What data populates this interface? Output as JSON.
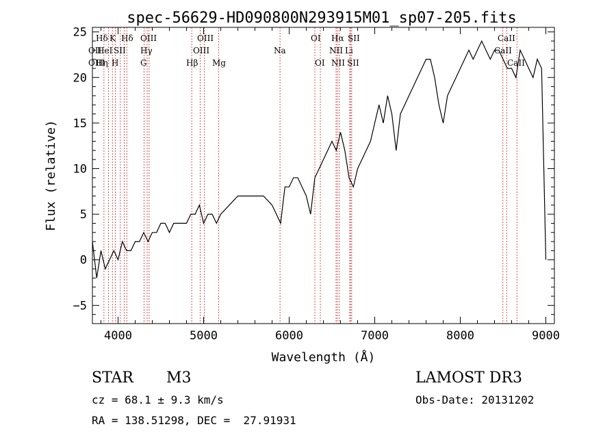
{
  "chart_data": {
    "type": "line",
    "title": "spec-56629-HD090800N293915M01_sp07-205.fits",
    "xlabel": "Wavelength (Å)",
    "ylabel": "Flux (relative)",
    "xlim": [
      3700,
      9100
    ],
    "ylim": [
      -7,
      25.5
    ],
    "xticks": [
      4000,
      5000,
      6000,
      7000,
      8000,
      9000
    ],
    "yticks": [
      -5,
      0,
      5,
      10,
      15,
      20,
      25
    ],
    "grid": false,
    "series": [
      {
        "x": [
          3700,
          3750,
          3800,
          3850,
          3900,
          3950,
          4000,
          4050,
          4100,
          4150,
          4200,
          4250,
          4300,
          4350,
          4400,
          4450,
          4500,
          4550,
          4600,
          4650,
          4700,
          4750,
          4800,
          4850,
          4900,
          4950,
          5000,
          5050,
          5100,
          5150,
          5200,
          5300,
          5400,
          5500,
          5600,
          5700,
          5800,
          5850,
          5900,
          5950,
          6000,
          6050,
          6100,
          6150,
          6200,
          6250,
          6300,
          6350,
          6400,
          6450,
          6500,
          6550,
          6600,
          6650,
          6700,
          6750,
          6800,
          6850,
          6900,
          6950,
          7000,
          7050,
          7100,
          7150,
          7200,
          7250,
          7300,
          7350,
          7400,
          7450,
          7500,
          7550,
          7600,
          7650,
          7700,
          7750,
          7800,
          7850,
          7900,
          7950,
          8000,
          8050,
          8100,
          8150,
          8200,
          8250,
          8300,
          8350,
          8400,
          8450,
          8500,
          8550,
          8600,
          8650,
          8700,
          8750,
          8800,
          8850,
          8900,
          8950,
          9000
        ],
        "y": [
          2,
          -2,
          1,
          -1,
          0,
          1,
          0,
          2,
          1,
          1,
          2,
          2,
          3,
          2,
          3,
          3,
          4,
          4,
          3,
          4,
          4,
          4,
          4,
          5,
          5,
          6,
          4,
          5,
          5,
          4,
          5,
          6,
          7,
          7,
          7,
          7,
          6,
          5,
          4,
          8,
          8,
          9,
          9,
          8,
          7,
          5,
          9,
          10,
          11,
          12,
          13,
          12,
          14,
          12,
          9,
          8,
          10,
          11,
          12,
          13,
          15,
          17,
          15,
          18,
          16,
          12,
          16,
          17,
          18,
          19,
          20,
          21,
          22,
          22,
          20,
          17,
          15,
          18,
          19,
          20,
          21,
          22,
          23,
          22,
          23,
          24,
          23,
          22,
          23,
          23,
          22,
          21,
          21,
          20,
          23,
          22,
          21,
          20,
          22,
          21,
          0
        ]
      }
    ],
    "line_markers": [
      {
        "x": 3835,
        "labels": [
          "Hη"
        ]
      },
      {
        "x": 3889,
        "labels": [
          "Hζ"
        ]
      },
      {
        "x": 3934,
        "labels": [
          "K"
        ]
      },
      {
        "x": 3969,
        "labels": [
          "H"
        ]
      },
      {
        "x": 4026,
        "labels": [
          "HeI"
        ]
      },
      {
        "x": 4072,
        "labels": [
          "SII"
        ]
      },
      {
        "x": 4102,
        "labels": [
          "Hδ"
        ]
      },
      {
        "x": 4304,
        "labels": [
          "G"
        ]
      },
      {
        "x": 4340,
        "labels": [
          "Hγ"
        ]
      },
      {
        "x": 4363,
        "labels": [
          "OIII"
        ]
      },
      {
        "x": 4861,
        "labels": [
          "Hβ"
        ]
      },
      {
        "x": 4959,
        "labels": [
          "OIII"
        ]
      },
      {
        "x": 5007,
        "labels": [
          "OIII"
        ]
      },
      {
        "x": 5175,
        "labels": [
          "Mg"
        ]
      },
      {
        "x": 5893,
        "labels": [
          "Na"
        ]
      },
      {
        "x": 6300,
        "labels": [
          "OI"
        ]
      },
      {
        "x": 6364,
        "labels": [
          "OI"
        ]
      },
      {
        "x": 6548,
        "labels": [
          "NII"
        ]
      },
      {
        "x": 6563,
        "labels": [
          "Hα"
        ]
      },
      {
        "x": 6584,
        "labels": [
          "NII"
        ]
      },
      {
        "x": 6708,
        "labels": [
          "Li"
        ]
      },
      {
        "x": 6717,
        "labels": [
          "SII"
        ]
      },
      {
        "x": 6731,
        "labels": [
          "SII"
        ]
      },
      {
        "x": 8498,
        "labels": [
          "CaII"
        ]
      },
      {
        "x": 8542,
        "labels": [
          "CaII"
        ]
      },
      {
        "x": 8662,
        "labels": [
          "CaII"
        ]
      }
    ],
    "line_label_text": [
      "Hδ",
      "K",
      "Hδ",
      "OIII",
      "OIII",
      "OI",
      "Hα",
      "SII",
      "CaII",
      "OII",
      "HeI",
      "SII",
      "Hγ",
      "OIII",
      "Na",
      "NII",
      "Li",
      "CaII",
      "OIII",
      "Hη",
      "H",
      "G",
      "Hβ",
      "Mg",
      "OI",
      "NII",
      "SII",
      "CaII"
    ]
  },
  "info": {
    "object_type": "STAR",
    "subclass": "M3",
    "survey": "LAMOST DR3",
    "cz": "cz = 68.1 ± 9.3 km/s",
    "obs_date": "Obs-Date: 20131202",
    "coords": "RA = 138.51298, DEC =  27.91931"
  }
}
